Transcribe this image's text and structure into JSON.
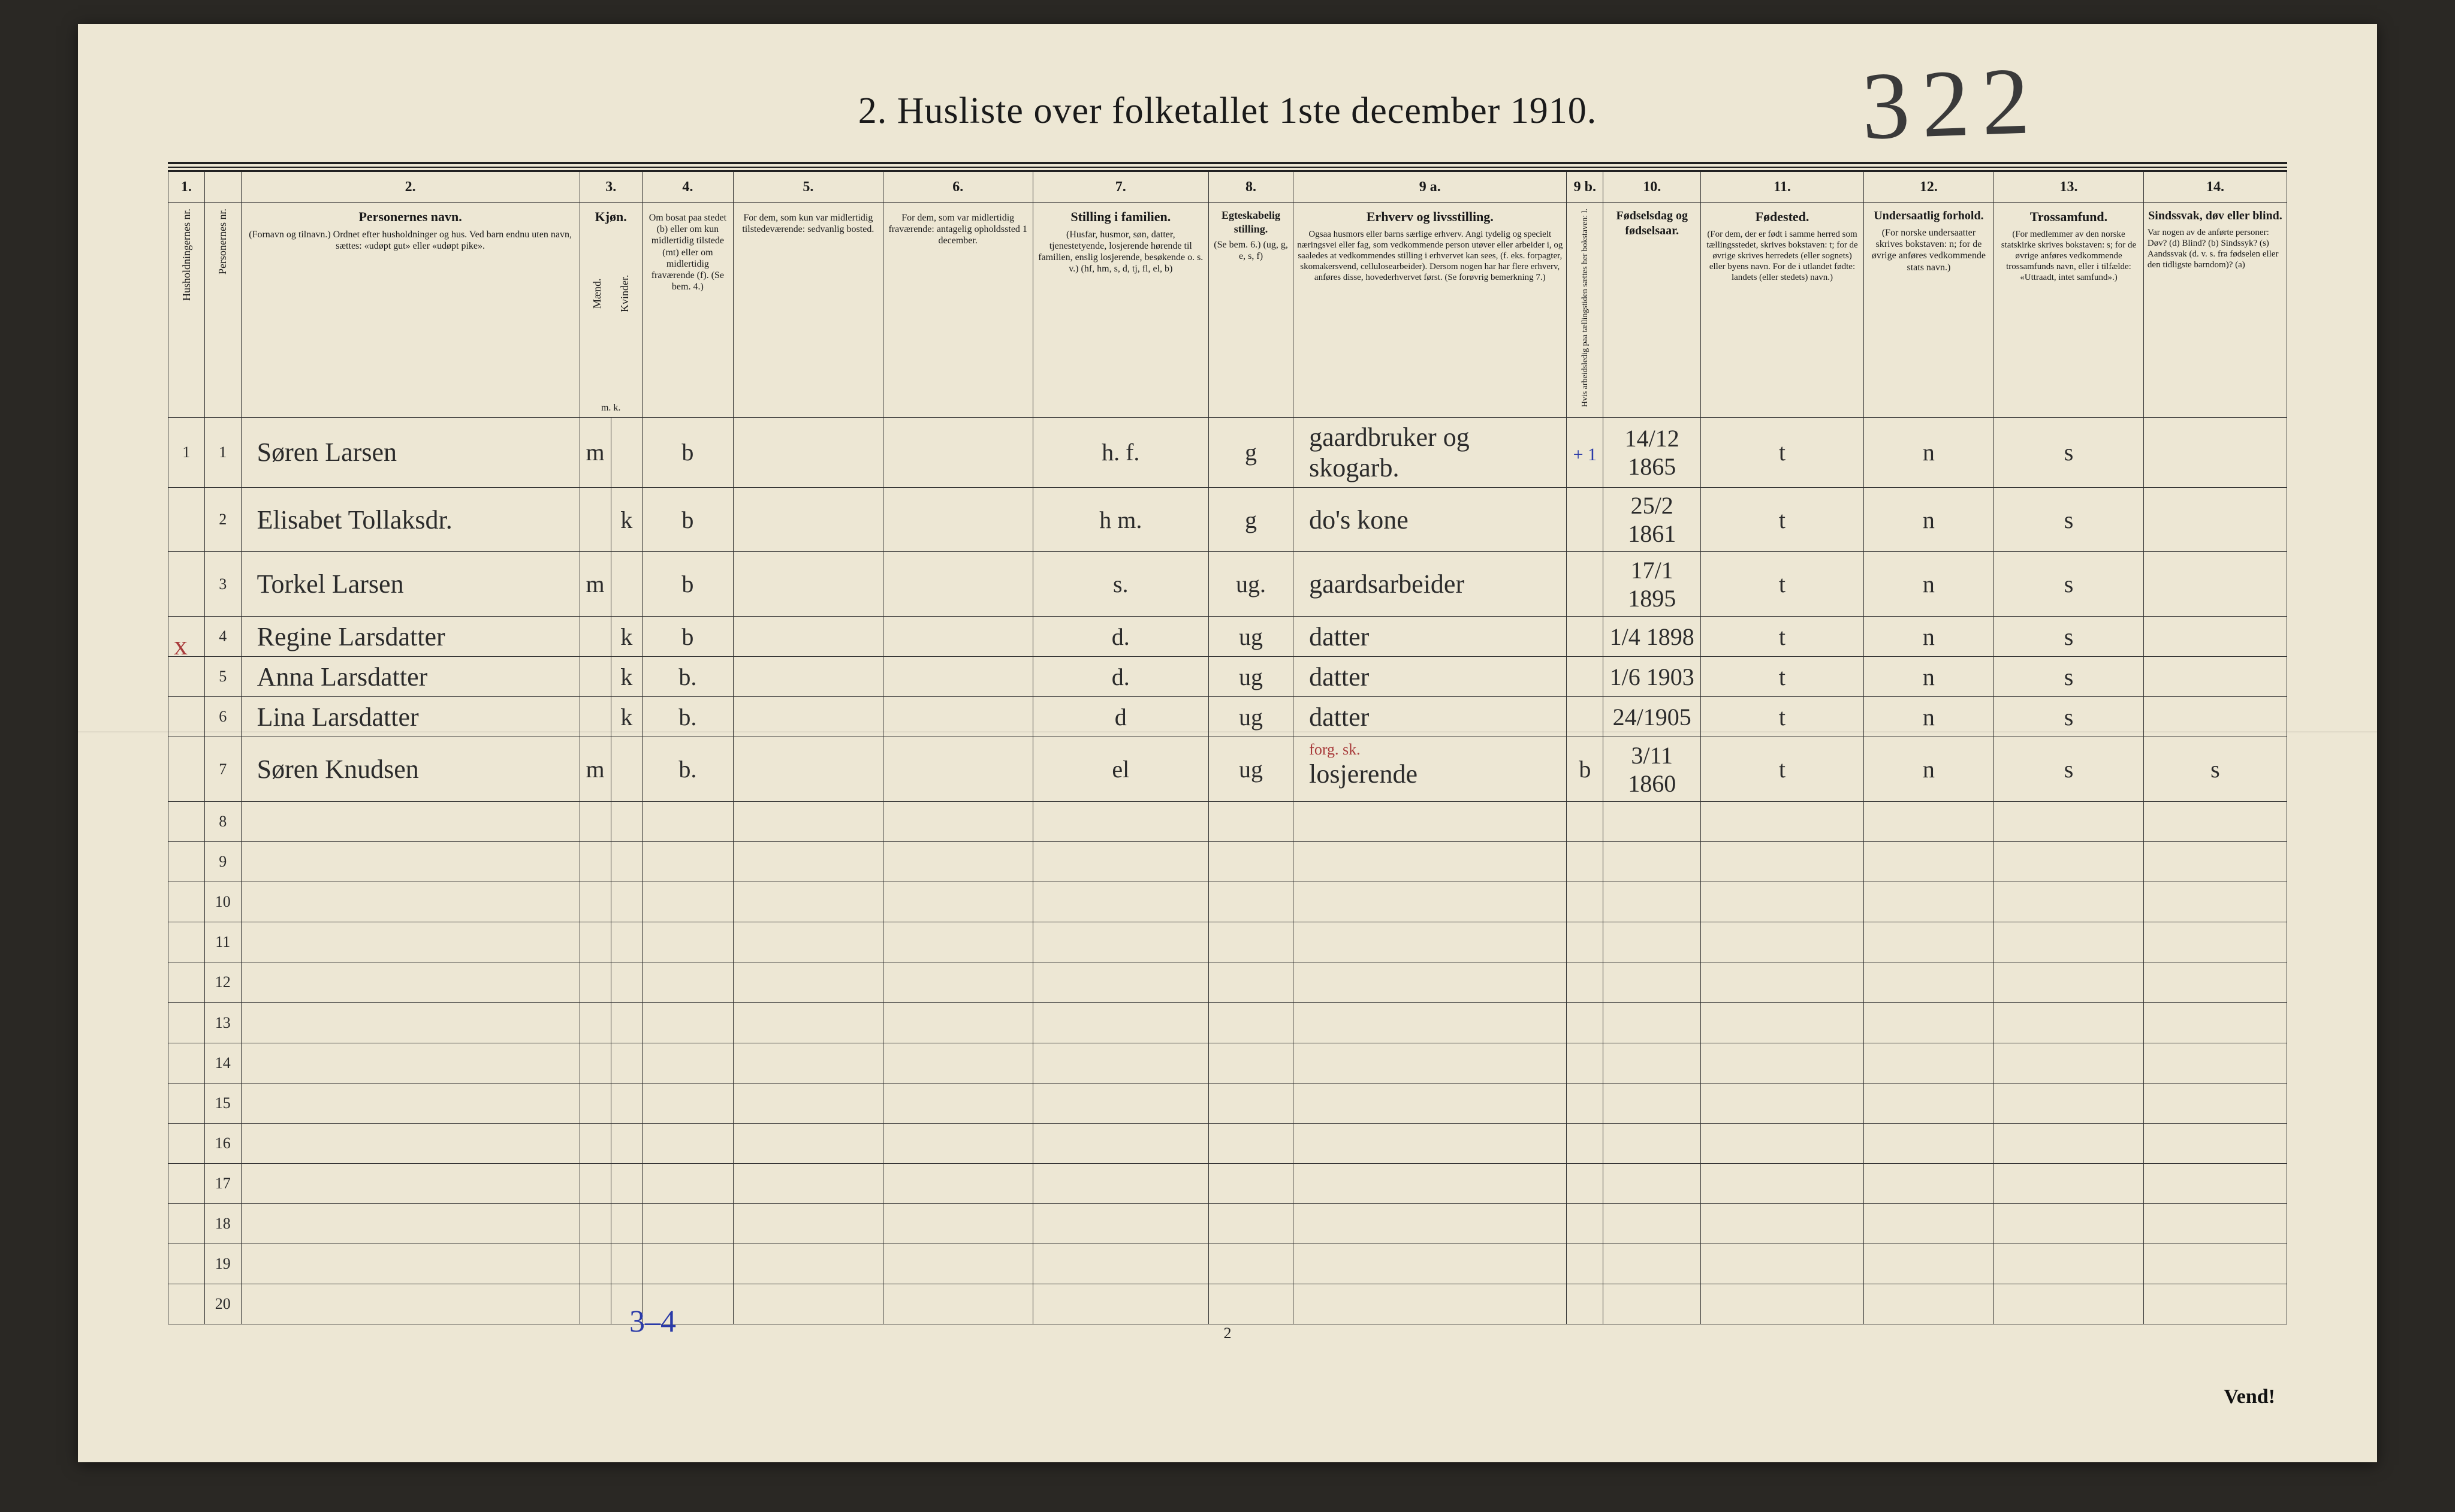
{
  "title": "2.  Husliste over folketallet 1ste december 1910.",
  "handwritten_page_number": "322",
  "colnums": [
    "1.",
    "",
    "2.",
    "3.",
    "",
    "4.",
    "5.",
    "6.",
    "7.",
    "8.",
    "9 a.",
    "9 b.",
    "10.",
    "11.",
    "12.",
    "13.",
    "14."
  ],
  "headers": {
    "c1a": "Husholdningernes nr.",
    "c1b": "Personernes nr.",
    "c2_strong": "Personernes navn.",
    "c2_rest": "(Fornavn og tilnavn.)\nOrdnet efter husholdninger og hus.\nVed barn endnu uten navn, sættes: «udøpt gut» eller «udøpt pike».",
    "c3_strong": "Kjøn.",
    "c3a": "Mænd.",
    "c3b": "Kvinder.",
    "c3_foot": "m.  k.",
    "c4": "Om bosat paa stedet (b) eller om kun midlertidig tilstede (mt) eller om midlertidig fraværende (f).\n(Se bem. 4.)",
    "c5": "For dem, som kun var midlertidig tilstedeværende:\nsedvanlig bosted.",
    "c6": "For dem, som var midlertidig fraværende:\nantagelig opholdssted 1 december.",
    "c7_strong": "Stilling i familien.",
    "c7_rest": "(Husfar, husmor, søn, datter, tjenestetyende, losjerende hørende til familien, enslig losjerende, besøkende o. s. v.)\n(hf, hm, s, d, tj, fl, el, b)",
    "c8_strong": "Egteskabelig stilling.",
    "c8_rest": "(Se bem. 6.)\n(ug, g, e, s, f)",
    "c9a_strong": "Erhverv og livsstilling.",
    "c9a_rest": "Ogsaa husmors eller barns særlige erhverv. Angi tydelig og specielt næringsvei eller fag, som vedkommende person utøver eller arbeider i, og saaledes at vedkommendes stilling i erhvervet kan sees, (f. eks. forpagter, skomakersvend, cellulosearbeider). Dersom nogen har har flere erhverv, anføres disse, hovederhvervet først.\n(Se forøvrig bemerkning 7.)",
    "c9b": "Hvis arbeidsledig paa tællingstiden sættes her bokstaven: l.",
    "c10": "Fødselsdag og fødselsaar.",
    "c11_strong": "Fødested.",
    "c11_rest": "(For dem, der er født i samme herred som tællingsstedet, skrives bokstaven: t; for de øvrige skrives herredets (eller sognets) eller byens navn. For de i utlandet fødte: landets (eller stedets) navn.)",
    "c12_strong": "Undersaatlig forhold.",
    "c12_rest": "(For norske undersaatter skrives bokstaven: n; for de øvrige anføres vedkommende stats navn.)",
    "c13_strong": "Trossamfund.",
    "c13_rest": "(For medlemmer av den norske statskirke skrives bokstaven: s; for de øvrige anføres vedkommende trossamfunds navn, eller i tilfælde: «Uttraadt, intet samfund».)",
    "c14_strong": "Sindssvak, døv eller blind.",
    "c14_rest": "Var nogen av de anførte personer:\nDøv?        (d)\nBlind?       (b)\nSindssyk?  (s)\nAandssvak (d. v. s. fra fødselen eller den tidligste barndom)?  (a)"
  },
  "rows": [
    {
      "hh": "1",
      "pn": "1",
      "name": "Søren Larsen",
      "m": "m",
      "k": "",
      "bosat": "b",
      "c5": "",
      "c6": "",
      "fam": "h. f.",
      "egt": "g",
      "erhv": "gaardbruker og skogarb.",
      "led": "",
      "fod": "14/12 1865",
      "fsted": "t",
      "und": "n",
      "tro": "s",
      "c14": ""
    },
    {
      "hh": "",
      "pn": "2",
      "name": "Elisabet Tollaksdr.",
      "m": "",
      "k": "k",
      "bosat": "b",
      "c5": "",
      "c6": "",
      "fam": "h m.",
      "egt": "g",
      "erhv": "do's  kone",
      "led": "",
      "fod": "25/2 1861",
      "fsted": "t",
      "und": "n",
      "tro": "s",
      "c14": ""
    },
    {
      "hh": "",
      "pn": "3",
      "name": "Torkel Larsen",
      "m": "m",
      "k": "",
      "bosat": "b",
      "c5": "",
      "c6": "",
      "fam": "s.",
      "egt": "ug.",
      "erhv": "gaardsarbeider",
      "led": "",
      "fod": "17/1 1895",
      "fsted": "t",
      "und": "n",
      "tro": "s",
      "c14": ""
    },
    {
      "hh": "",
      "pn": "4",
      "name": "Regine Larsdatter",
      "m": "",
      "k": "k",
      "bosat": "b",
      "c5": "",
      "c6": "",
      "fam": "d.",
      "egt": "ug",
      "erhv": "datter",
      "led": "",
      "fod": "1/4 1898",
      "fsted": "t",
      "und": "n",
      "tro": "s",
      "c14": ""
    },
    {
      "hh": "",
      "pn": "5",
      "name": "Anna Larsdatter",
      "m": "",
      "k": "k",
      "bosat": "b.",
      "c5": "",
      "c6": "",
      "fam": "d.",
      "egt": "ug",
      "erhv": "datter",
      "led": "",
      "fod": "1/6 1903",
      "fsted": "t",
      "und": "n",
      "tro": "s",
      "c14": ""
    },
    {
      "hh": "",
      "pn": "6",
      "name": "Lina Larsdatter",
      "m": "",
      "k": "k",
      "bosat": "b.",
      "c5": "",
      "c6": "",
      "fam": "d",
      "egt": "ug",
      "erhv": "datter",
      "led": "",
      "fod": "24/1905",
      "fsted": "t",
      "und": "n",
      "tro": "s",
      "c14": ""
    },
    {
      "hh": "",
      "pn": "7",
      "name": "Søren Knudsen",
      "m": "m",
      "k": "",
      "bosat": "b.",
      "c5": "",
      "c6": "",
      "fam": "el",
      "egt": "ug",
      "erhv": "losjerende",
      "led": "b",
      "fod": "3/11 1860",
      "fsted": "t",
      "und": "n",
      "tro": "s",
      "c14": "s"
    }
  ],
  "row_labels_rest": [
    "8",
    "9",
    "10",
    "11",
    "12",
    "13",
    "14",
    "15",
    "16",
    "17",
    "18",
    "19",
    "20"
  ],
  "col9b_top_mark": "+  1",
  "row7_red_note": "forg. sk.",
  "x_mark": "x",
  "footer_page": "2",
  "footnote_34": "3–4",
  "vend": "Vend!",
  "colors": {
    "paper": "#ede7d4",
    "ink": "#1a1a1a",
    "hand": "#2b2b2b",
    "blue": "#2a3aa8",
    "red": "#a83a3a",
    "bg": "#2a2824"
  }
}
